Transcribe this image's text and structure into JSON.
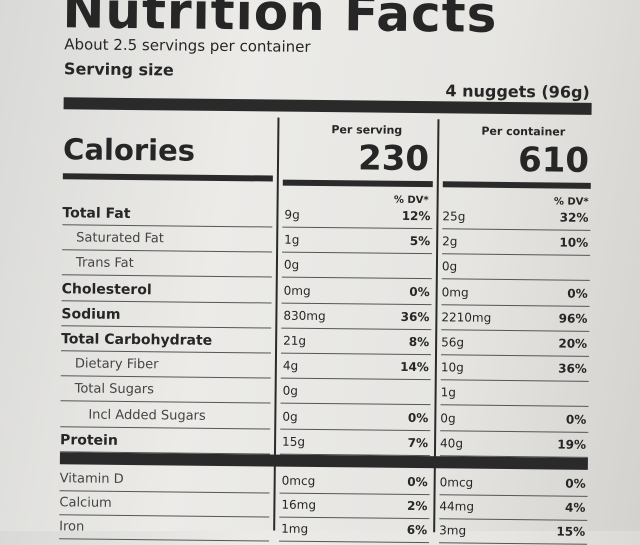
{
  "header": {
    "title": "Nutrition Facts",
    "servings": "About 2.5 servings per container",
    "serving_size_label": "Serving size",
    "serving_size": "4 nuggets (96g)"
  },
  "calories": {
    "label": "Calories",
    "per_serving_label": "Per serving",
    "per_serving": "230",
    "per_container_label": "Per container",
    "per_container": "610",
    "dv_label": "% DV*"
  },
  "nutrients": [
    {
      "label": "Total Fat",
      "bold": true,
      "indent": 0,
      "serving": "9g",
      "serving_dv": "12%",
      "container": "25g",
      "container_dv": "32%"
    },
    {
      "label": "Saturated Fat",
      "bold": false,
      "indent": 1,
      "serving": "1g",
      "serving_dv": "5%",
      "container": "2g",
      "container_dv": "10%"
    },
    {
      "label": "Trans Fat",
      "bold": false,
      "indent": 1,
      "serving": "0g",
      "container": "0g"
    },
    {
      "label": "Cholesterol",
      "bold": true,
      "indent": 0,
      "serving": "0mg",
      "serving_dv": "0%",
      "container": "0mg",
      "container_dv": "0%"
    },
    {
      "label": "Sodium",
      "bold": true,
      "indent": 0,
      "serving": "830mg",
      "serving_dv": "36%",
      "container": "2210mg",
      "container_dv": "96%"
    },
    {
      "label": "Total Carbohydrate",
      "bold": true,
      "indent": 0,
      "serving": "21g",
      "serving_dv": "8%",
      "container": "56g",
      "container_dv": "20%"
    },
    {
      "label": "Dietary Fiber",
      "bold": false,
      "indent": 1,
      "serving": "4g",
      "serving_dv": "14%",
      "container": "10g",
      "container_dv": "36%"
    },
    {
      "label": "Total Sugars",
      "bold": false,
      "indent": 1,
      "serving": "0g",
      "container": "1g"
    },
    {
      "label": "Incl Added Sugars",
      "bold": false,
      "indent": 2,
      "serving": "0g",
      "serving_dv": "0%",
      "container": "0g",
      "container_dv": "0%"
    },
    {
      "label": "Protein",
      "bold": true,
      "indent": 0,
      "serving": "15g",
      "serving_dv": "7%",
      "container": "40g",
      "container_dv": "19%"
    }
  ],
  "vitamins": [
    {
      "label": "Vitamin D",
      "serving": "0mcg",
      "serving_dv": "0%",
      "container": "0mcg",
      "container_dv": "0%"
    },
    {
      "label": "Calcium",
      "serving": "16mg",
      "serving_dv": "2%",
      "container": "44mg",
      "container_dv": "4%"
    },
    {
      "label": "Iron",
      "serving": "1mg",
      "serving_dv": "6%",
      "container": "3mg",
      "container_dv": "15%"
    }
  ]
}
